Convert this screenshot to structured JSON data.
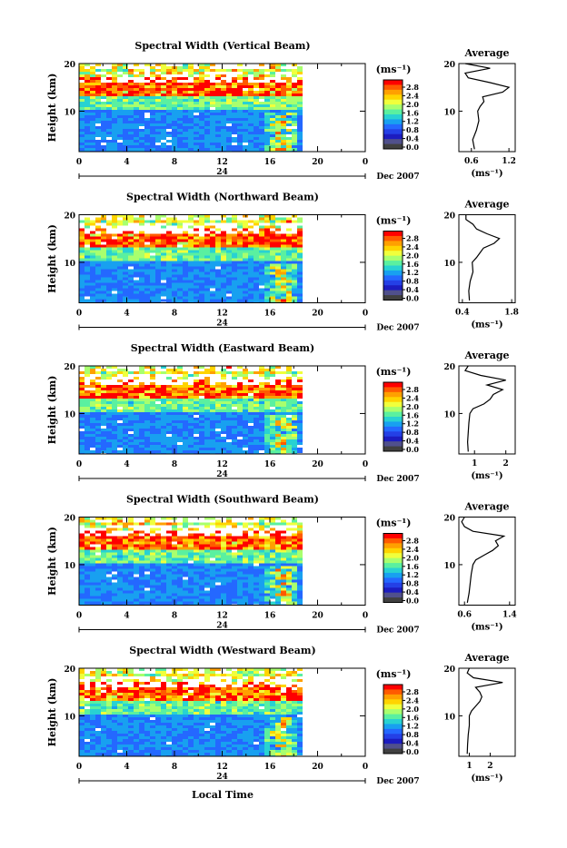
{
  "figure": {
    "xlabel": "Local Time",
    "date_label": "Dec 2007",
    "day_label": "24",
    "height_label": "Height (km)",
    "unit_label": "(ms⁻¹)",
    "average_title": "Average"
  },
  "colorbar": {
    "ticks": [
      "2.8",
      "2.4",
      "2.0",
      "1.6",
      "1.2",
      "0.8",
      "0.4",
      "0.0"
    ],
    "colors": [
      "#ff0000",
      "#ff5a00",
      "#ffa000",
      "#ffd400",
      "#f0ff3c",
      "#a8ff6e",
      "#5af0a0",
      "#28d2d2",
      "#18a0f0",
      "#2468ff",
      "#2440e6",
      "#1c1cc0",
      "#50508c",
      "#404040"
    ]
  },
  "chart_data": [
    {
      "type": "heatmap",
      "title": "Spectral Width (Vertical Beam)",
      "xlabel": "Local Time",
      "ylabel": "Height (km)",
      "xlim": [
        0,
        24
      ],
      "ylim": [
        1.5,
        20
      ],
      "x_ticks": [
        "0",
        "4",
        "8",
        "12",
        "16",
        "20",
        "0"
      ],
      "y_ticks": [
        "20",
        "10"
      ],
      "colorbar_range": [
        0,
        3.0
      ],
      "data_end_hour": 18.5,
      "average_profile": {
        "xlabel": "(ms⁻¹)",
        "x_ticks": [
          "0.6",
          "1.2"
        ],
        "xlim": [
          0.4,
          1.3
        ],
        "height": [
          2,
          4,
          6,
          8,
          10,
          11,
          12,
          13,
          14,
          15,
          16,
          17,
          18,
          19,
          20
        ],
        "values": [
          0.65,
          0.62,
          0.68,
          0.72,
          0.7,
          0.74,
          0.8,
          0.78,
          1.1,
          1.2,
          0.9,
          0.55,
          0.5,
          0.9,
          0.5
        ]
      }
    },
    {
      "type": "heatmap",
      "title": "Spectral Width (Northward Beam)",
      "xlabel": "Local Time",
      "ylabel": "Height (km)",
      "xlim": [
        0,
        24
      ],
      "ylim": [
        1.5,
        20
      ],
      "x_ticks": [
        "0",
        "4",
        "8",
        "12",
        "16",
        "20",
        "0"
      ],
      "y_ticks": [
        "20",
        "10"
      ],
      "colorbar_range": [
        0,
        3.0
      ],
      "data_end_hour": 18.5,
      "average_profile": {
        "xlabel": "(ms⁻¹)",
        "x_ticks": [
          "0.4",
          "1.8"
        ],
        "xlim": [
          0.3,
          1.9
        ],
        "height": [
          2,
          4,
          6,
          8,
          10,
          11,
          12,
          13,
          14,
          15,
          16,
          17,
          18,
          19,
          20
        ],
        "values": [
          0.6,
          0.58,
          0.62,
          0.7,
          0.68,
          0.8,
          0.9,
          1.0,
          1.3,
          1.45,
          1.1,
          0.8,
          0.7,
          0.5,
          0.5
        ]
      }
    },
    {
      "type": "heatmap",
      "title": "Spectral Width (Eastward Beam)",
      "xlabel": "Local Time",
      "ylabel": "Height (km)",
      "xlim": [
        0,
        24
      ],
      "ylim": [
        1.5,
        20
      ],
      "x_ticks": [
        "0",
        "4",
        "8",
        "12",
        "16",
        "20",
        "0"
      ],
      "y_ticks": [
        "20",
        "10"
      ],
      "colorbar_range": [
        0,
        3.0
      ],
      "data_end_hour": 18.5,
      "average_profile": {
        "xlabel": "(ms⁻¹)",
        "x_ticks": [
          "1",
          "2"
        ],
        "xlim": [
          0.5,
          2.3
        ],
        "height": [
          2,
          4,
          6,
          8,
          10,
          11,
          12,
          13,
          14,
          15,
          16,
          17,
          18,
          19,
          20
        ],
        "values": [
          0.8,
          0.78,
          0.8,
          0.82,
          0.85,
          0.95,
          1.3,
          1.5,
          1.6,
          1.9,
          1.4,
          2.0,
          1.2,
          0.7,
          0.8
        ]
      }
    },
    {
      "type": "heatmap",
      "title": "Spectral Width (Southward Beam)",
      "xlabel": "Local Time",
      "ylabel": "Height (km)",
      "xlim": [
        0,
        24
      ],
      "ylim": [
        1.5,
        20
      ],
      "x_ticks": [
        "0",
        "4",
        "8",
        "12",
        "16",
        "20",
        "0"
      ],
      "y_ticks": [
        "20",
        "10"
      ],
      "colorbar_range": [
        0,
        3.0
      ],
      "data_end_hour": 18.5,
      "average_profile": {
        "xlabel": "(ms⁻¹)",
        "x_ticks": [
          "0.6",
          "1.4"
        ],
        "xlim": [
          0.5,
          1.5
        ],
        "height": [
          2,
          4,
          6,
          8,
          10,
          11,
          12,
          13,
          14,
          15,
          16,
          17,
          18,
          19,
          20
        ],
        "values": [
          0.65,
          0.68,
          0.7,
          0.72,
          0.75,
          0.8,
          0.95,
          1.1,
          1.2,
          1.15,
          1.3,
          0.75,
          0.6,
          0.55,
          0.6
        ]
      }
    },
    {
      "type": "heatmap",
      "title": "Spectral Width (Westward Beam)",
      "xlabel": "Local Time",
      "ylabel": "Height (km)",
      "xlim": [
        0,
        24
      ],
      "ylim": [
        1.5,
        20
      ],
      "x_ticks": [
        "0",
        "4",
        "8",
        "12",
        "16",
        "20",
        "0"
      ],
      "y_ticks": [
        "20",
        "10"
      ],
      "colorbar_range": [
        0,
        3.0
      ],
      "data_end_hour": 18.5,
      "average_profile": {
        "xlabel": "(ms⁻¹)",
        "x_ticks": [
          "1",
          "2"
        ],
        "xlim": [
          0.5,
          3.2
        ],
        "height": [
          2,
          4,
          6,
          8,
          10,
          11,
          12,
          13,
          14,
          15,
          16,
          17,
          18,
          19,
          20
        ],
        "values": [
          0.9,
          0.92,
          0.95,
          1.0,
          1.0,
          1.1,
          1.3,
          1.5,
          1.6,
          1.5,
          1.3,
          2.6,
          1.2,
          0.9,
          1.0
        ]
      }
    }
  ]
}
